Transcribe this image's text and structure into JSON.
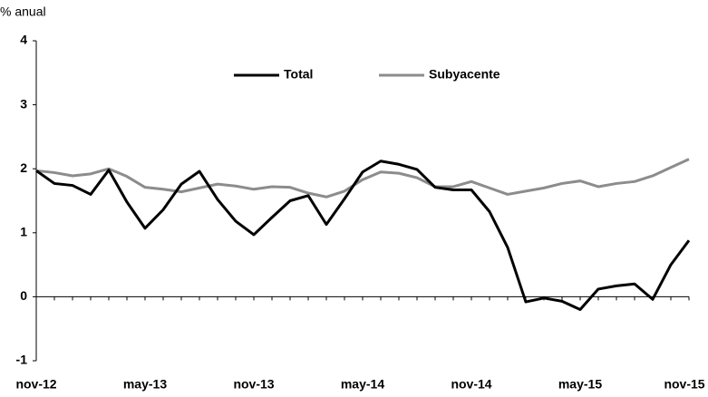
{
  "chart_data": {
    "type": "line",
    "y_label": "% anual",
    "categories": [
      "nov-12",
      null,
      null,
      null,
      null,
      null,
      "may-13",
      null,
      null,
      null,
      null,
      null,
      "nov-13",
      null,
      null,
      null,
      null,
      null,
      "may-14",
      null,
      null,
      null,
      null,
      null,
      "nov-14",
      null,
      null,
      null,
      null,
      null,
      "may-15",
      null,
      null,
      null,
      null,
      null,
      "nov-15"
    ],
    "series": [
      {
        "name": "Total",
        "color": "#000000",
        "values": [
          1.97,
          1.77,
          1.74,
          1.6,
          1.98,
          1.48,
          1.07,
          1.36,
          1.76,
          1.96,
          1.52,
          1.18,
          0.97,
          1.24,
          1.5,
          1.58,
          1.13,
          1.53,
          1.95,
          2.12,
          2.07,
          1.99,
          1.71,
          1.67,
          1.67,
          1.33,
          0.77,
          -0.08,
          -0.02,
          -0.07,
          -0.2,
          0.12,
          0.17,
          0.2,
          -0.04,
          0.5,
          0.88
        ]
      },
      {
        "name": "Subyacente",
        "color": "#8c8c8c",
        "values": [
          1.97,
          1.94,
          1.89,
          1.92,
          2.0,
          1.88,
          1.71,
          1.68,
          1.64,
          1.7,
          1.76,
          1.73,
          1.68,
          1.72,
          1.71,
          1.62,
          1.56,
          1.65,
          1.83,
          1.95,
          1.93,
          1.86,
          1.72,
          1.72,
          1.8,
          1.7,
          1.6,
          1.65,
          1.7,
          1.77,
          1.81,
          1.72,
          1.77,
          1.8,
          1.89,
          2.02,
          2.15
        ]
      }
    ],
    "ylim": [
      -1,
      4
    ],
    "yticks": [
      -1,
      0,
      1,
      2,
      3,
      4
    ],
    "grid": false,
    "legend": "top"
  }
}
